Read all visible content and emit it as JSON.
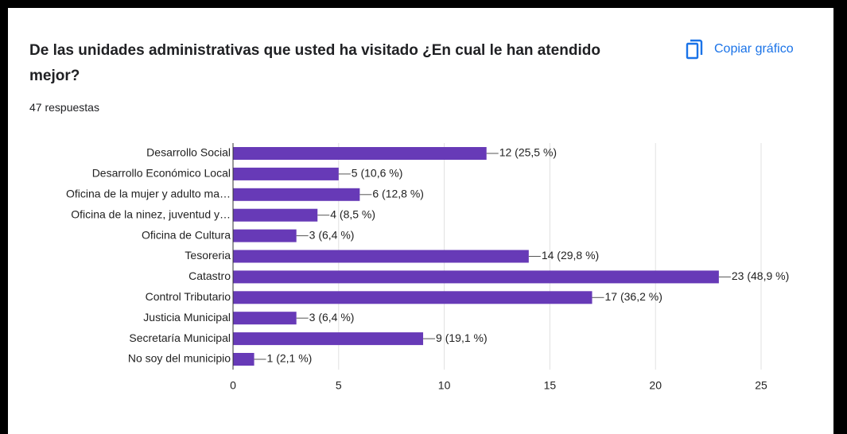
{
  "header": {
    "title": "De las unidades administrativas que usted ha visitado ¿En cual le han atendido mejor?",
    "subtitle": "47 respuestas",
    "button": "Copiar gráfico"
  },
  "chart_data": {
    "type": "barh",
    "categories": [
      "Desarrollo Social",
      "Desarrollo Económico Local",
      "Oficina de la mujer y adulto ma…",
      "Oficina de la ninez, juventud y…",
      "Oficina de Cultura",
      "Tesoreria",
      "Catastro",
      "Control Tributario",
      "Justicia Municipal",
      "Secretaría Municipal",
      "No soy del municipio"
    ],
    "values": [
      12,
      5,
      6,
      4,
      3,
      14,
      23,
      17,
      3,
      9,
      1
    ],
    "value_labels": [
      "12 (25,5 %)",
      "5 (10,6 %)",
      "6 (12,8 %)",
      "4 (8,5 %)",
      "3 (6,4 %)",
      "14 (29,8 %)",
      "23 (48,9 %)",
      "17 (36,2 %)",
      "3 (6,4 %)",
      "9 (19,1 %)",
      "1 (2,1 %)"
    ],
    "color": "#673ab7",
    "xlim": [
      0,
      25
    ],
    "xticks": [
      0,
      5,
      10,
      15,
      20,
      25
    ],
    "grid": true
  }
}
